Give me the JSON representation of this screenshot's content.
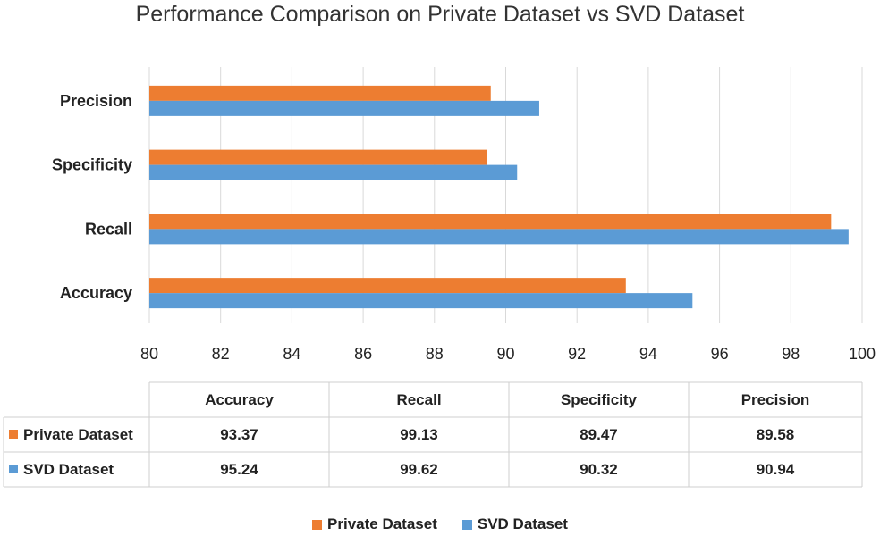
{
  "chart_data": {
    "type": "bar",
    "orientation": "horizontal",
    "title": "Performance Comparison on Private Dataset vs SVD Dataset",
    "categories": [
      "Accuracy",
      "Recall",
      "Specificity",
      "Precision"
    ],
    "series": [
      {
        "name": "Private Dataset",
        "color": "#ED7D31",
        "values": [
          93.37,
          99.13,
          89.47,
          89.58
        ]
      },
      {
        "name": "SVD Dataset",
        "color": "#5B9BD5",
        "values": [
          95.24,
          99.62,
          90.32,
          90.94
        ]
      }
    ],
    "xlim": [
      80,
      100
    ],
    "xticks": [
      "80",
      "82",
      "84",
      "86",
      "88",
      "90",
      "92",
      "94",
      "96",
      "98",
      "100"
    ],
    "value_labels": [
      [
        "93.37",
        "99.13",
        "89.47",
        "89.58"
      ],
      [
        "95.24",
        "99.62",
        "90.32",
        "90.94"
      ]
    ],
    "grid": true,
    "legend": "bottom",
    "data_table": true
  }
}
